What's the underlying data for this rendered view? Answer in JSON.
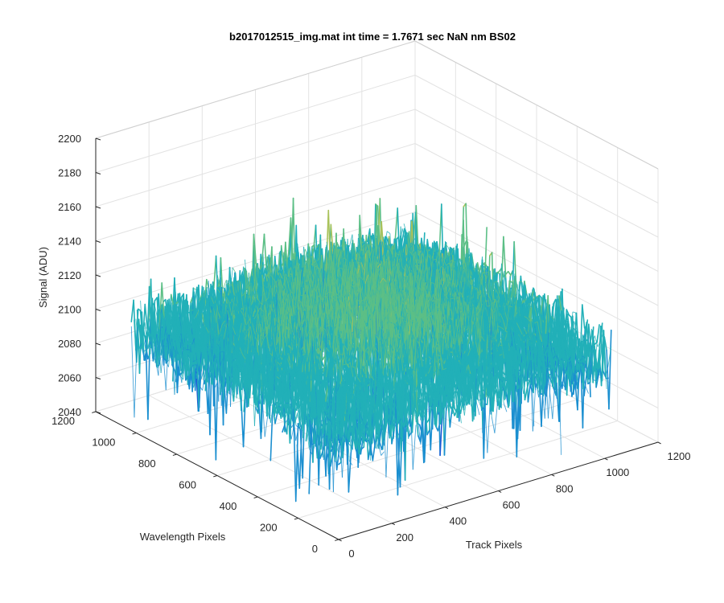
{
  "chart_data": {
    "type": "surface",
    "title": "b2017012515_img.mat int time = 1.7671 sec  NaN nm BS02",
    "xlabel": "Track Pixels",
    "ylabel": "Wavelength Pixels",
    "zlabel": "Signal (ADU)",
    "xlim": [
      0,
      1200
    ],
    "ylim": [
      0,
      1200
    ],
    "zlim": [
      2040,
      2200
    ],
    "x_ticks": [
      "0",
      "200",
      "400",
      "600",
      "800",
      "1000",
      "1200"
    ],
    "y_ticks": [
      "0",
      "200",
      "400",
      "600",
      "800",
      "1000",
      "1200"
    ],
    "z_ticks": [
      "2040",
      "2060",
      "2080",
      "2100",
      "2120",
      "2140",
      "2160",
      "2180",
      "2200"
    ],
    "grid": true,
    "colormap": [
      "#1f5bd6",
      "#1b8fd0",
      "#22b0b8",
      "#5cbf86",
      "#a9c25a",
      "#e0c24a"
    ],
    "data_extent": {
      "x": [
        0,
        1024
      ],
      "y": [
        0,
        1024
      ]
    },
    "signal_mean": 2105,
    "signal_min_approx": 2045,
    "signal_max_approx": 2185,
    "description_profile": {
      "center_mean": 2128,
      "edge_mean": 2098
    }
  }
}
